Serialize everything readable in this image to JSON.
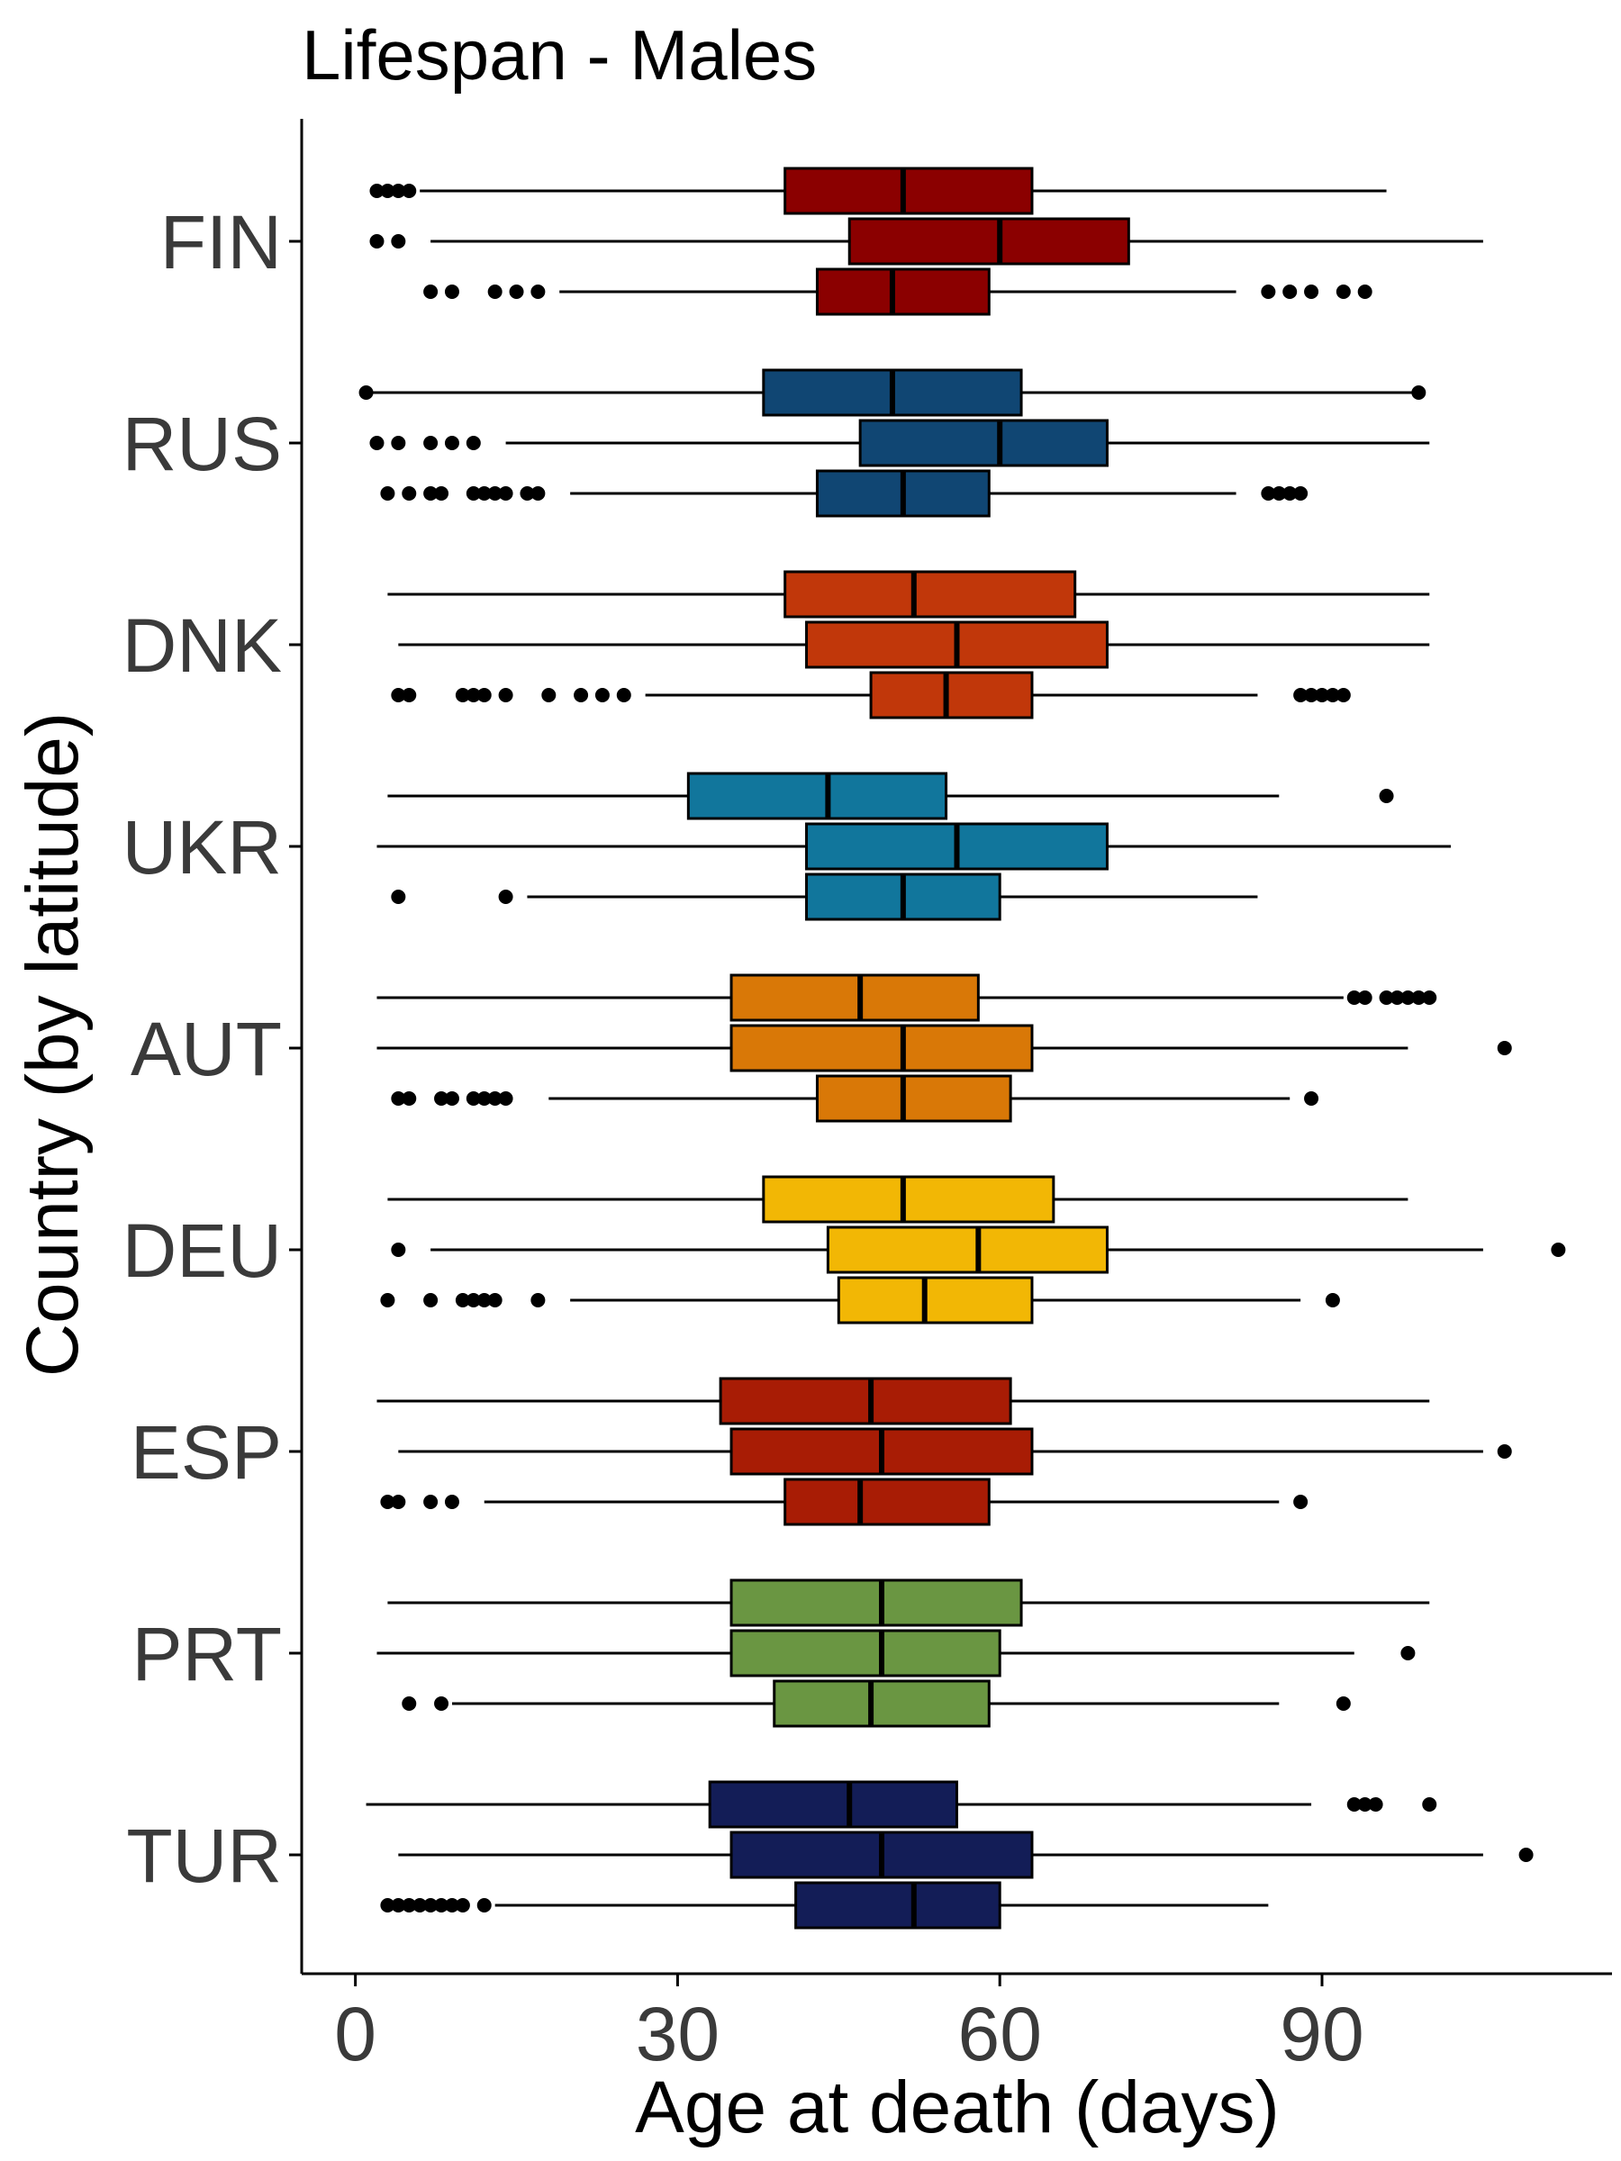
{
  "chart_data": {
    "type": "boxplot",
    "orientation": "horizontal",
    "title": "Lifespan - Males",
    "xlabel": "Age at death (days)",
    "ylabel": "Country (by latitude)",
    "xlim": [
      -5,
      117
    ],
    "xticks": [
      0,
      30,
      60,
      90
    ],
    "grid": false,
    "legend": "none",
    "categories": [
      "FIN",
      "RUS",
      "DNK",
      "UKR",
      "AUT",
      "DEU",
      "ESP",
      "PRT",
      "TUR"
    ],
    "colors": {
      "FIN": "#8b0000",
      "RUS": "#104673",
      "DNK": "#c1370a",
      "UKR": "#11769c",
      "AUT": "#d97807",
      "DEU": "#f2b705",
      "ESP": "#a81c05",
      "PRT": "#6a9642",
      "TUR": "#131d57"
    },
    "groups": [
      {
        "country": "FIN",
        "boxes": [
          {
            "whisker_low": 6,
            "q1": 40,
            "median": 51,
            "q3": 63,
            "whisker_high": 96,
            "outliers": [
              2,
              3,
              4,
              5
            ]
          },
          {
            "whisker_low": 7,
            "q1": 46,
            "median": 60,
            "q3": 72,
            "whisker_high": 105,
            "outliers": [
              2,
              4
            ]
          },
          {
            "whisker_low": 19,
            "q1": 43,
            "median": 50,
            "q3": 59,
            "whisker_high": 82,
            "outliers": [
              7,
              9,
              13,
              15,
              17,
              85,
              87,
              89,
              92,
              94
            ]
          }
        ]
      },
      {
        "country": "RUS",
        "boxes": [
          {
            "whisker_low": 1,
            "q1": 38,
            "median": 50,
            "q3": 62,
            "whisker_high": 99,
            "outliers": [
              1,
              99
            ]
          },
          {
            "whisker_low": 14,
            "q1": 47,
            "median": 60,
            "q3": 70,
            "whisker_high": 100,
            "outliers": [
              2,
              4,
              7,
              9,
              11
            ]
          },
          {
            "whisker_low": 20,
            "q1": 43,
            "median": 51,
            "q3": 59,
            "whisker_high": 82,
            "outliers": [
              3,
              5,
              7,
              8,
              11,
              12,
              13,
              14,
              16,
              17,
              85,
              86,
              87,
              88
            ]
          }
        ]
      },
      {
        "country": "DNK",
        "boxes": [
          {
            "whisker_low": 3,
            "q1": 40,
            "median": 52,
            "q3": 67,
            "whisker_high": 100,
            "outliers": []
          },
          {
            "whisker_low": 4,
            "q1": 42,
            "median": 56,
            "q3": 70,
            "whisker_high": 100,
            "outliers": []
          },
          {
            "whisker_low": 27,
            "q1": 48,
            "median": 55,
            "q3": 63,
            "whisker_high": 84,
            "outliers": [
              4,
              5,
              10,
              11,
              12,
              14,
              18,
              21,
              23,
              25,
              88,
              89,
              90,
              91,
              92
            ]
          }
        ]
      },
      {
        "country": "UKR",
        "boxes": [
          {
            "whisker_low": 3,
            "q1": 31,
            "median": 44,
            "q3": 55,
            "whisker_high": 86,
            "outliers": [
              96
            ]
          },
          {
            "whisker_low": 2,
            "q1": 42,
            "median": 56,
            "q3": 70,
            "whisker_high": 102,
            "outliers": []
          },
          {
            "whisker_low": 16,
            "q1": 42,
            "median": 51,
            "q3": 60,
            "whisker_high": 84,
            "outliers": [
              4,
              14
            ]
          }
        ]
      },
      {
        "country": "AUT",
        "boxes": [
          {
            "whisker_low": 2,
            "q1": 35,
            "median": 47,
            "q3": 58,
            "whisker_high": 92,
            "outliers": [
              93,
              94,
              96,
              97,
              98,
              99,
              100
            ]
          },
          {
            "whisker_low": 2,
            "q1": 35,
            "median": 51,
            "q3": 63,
            "whisker_high": 98,
            "outliers": [
              107
            ]
          },
          {
            "whisker_low": 18,
            "q1": 43,
            "median": 51,
            "q3": 61,
            "whisker_high": 87,
            "outliers": [
              4,
              5,
              8,
              9,
              11,
              12,
              13,
              14,
              89
            ]
          }
        ]
      },
      {
        "country": "DEU",
        "boxes": [
          {
            "whisker_low": 3,
            "q1": 38,
            "median": 51,
            "q3": 65,
            "whisker_high": 98,
            "outliers": []
          },
          {
            "whisker_low": 7,
            "q1": 44,
            "median": 58,
            "q3": 70,
            "whisker_high": 105,
            "outliers": [
              4,
              112
            ]
          },
          {
            "whisker_low": 20,
            "q1": 45,
            "median": 53,
            "q3": 63,
            "whisker_high": 88,
            "outliers": [
              3,
              7,
              10,
              11,
              12,
              13,
              17,
              91
            ]
          }
        ]
      },
      {
        "country": "ESP",
        "boxes": [
          {
            "whisker_low": 2,
            "q1": 34,
            "median": 48,
            "q3": 61,
            "whisker_high": 100,
            "outliers": []
          },
          {
            "whisker_low": 4,
            "q1": 35,
            "median": 49,
            "q3": 63,
            "whisker_high": 105,
            "outliers": [
              107
            ]
          },
          {
            "whisker_low": 12,
            "q1": 40,
            "median": 47,
            "q3": 59,
            "whisker_high": 86,
            "outliers": [
              3,
              4,
              7,
              9,
              88
            ]
          }
        ]
      },
      {
        "country": "PRT",
        "boxes": [
          {
            "whisker_low": 3,
            "q1": 35,
            "median": 49,
            "q3": 62,
            "whisker_high": 100,
            "outliers": []
          },
          {
            "whisker_low": 2,
            "q1": 35,
            "median": 49,
            "q3": 60,
            "whisker_high": 93,
            "outliers": [
              98
            ]
          },
          {
            "whisker_low": 9,
            "q1": 39,
            "median": 48,
            "q3": 59,
            "whisker_high": 86,
            "outliers": [
              5,
              8,
              92
            ]
          }
        ]
      },
      {
        "country": "TUR",
        "boxes": [
          {
            "whisker_low": 1,
            "q1": 33,
            "median": 46,
            "q3": 56,
            "whisker_high": 89,
            "outliers": [
              93,
              94,
              95,
              100
            ]
          },
          {
            "whisker_low": 4,
            "q1": 35,
            "median": 49,
            "q3": 63,
            "whisker_high": 105,
            "outliers": [
              109
            ]
          },
          {
            "whisker_low": 13,
            "q1": 41,
            "median": 52,
            "q3": 60,
            "whisker_high": 85,
            "outliers": [
              3,
              4,
              5,
              6,
              7,
              8,
              9,
              10,
              12
            ]
          }
        ]
      }
    ]
  }
}
